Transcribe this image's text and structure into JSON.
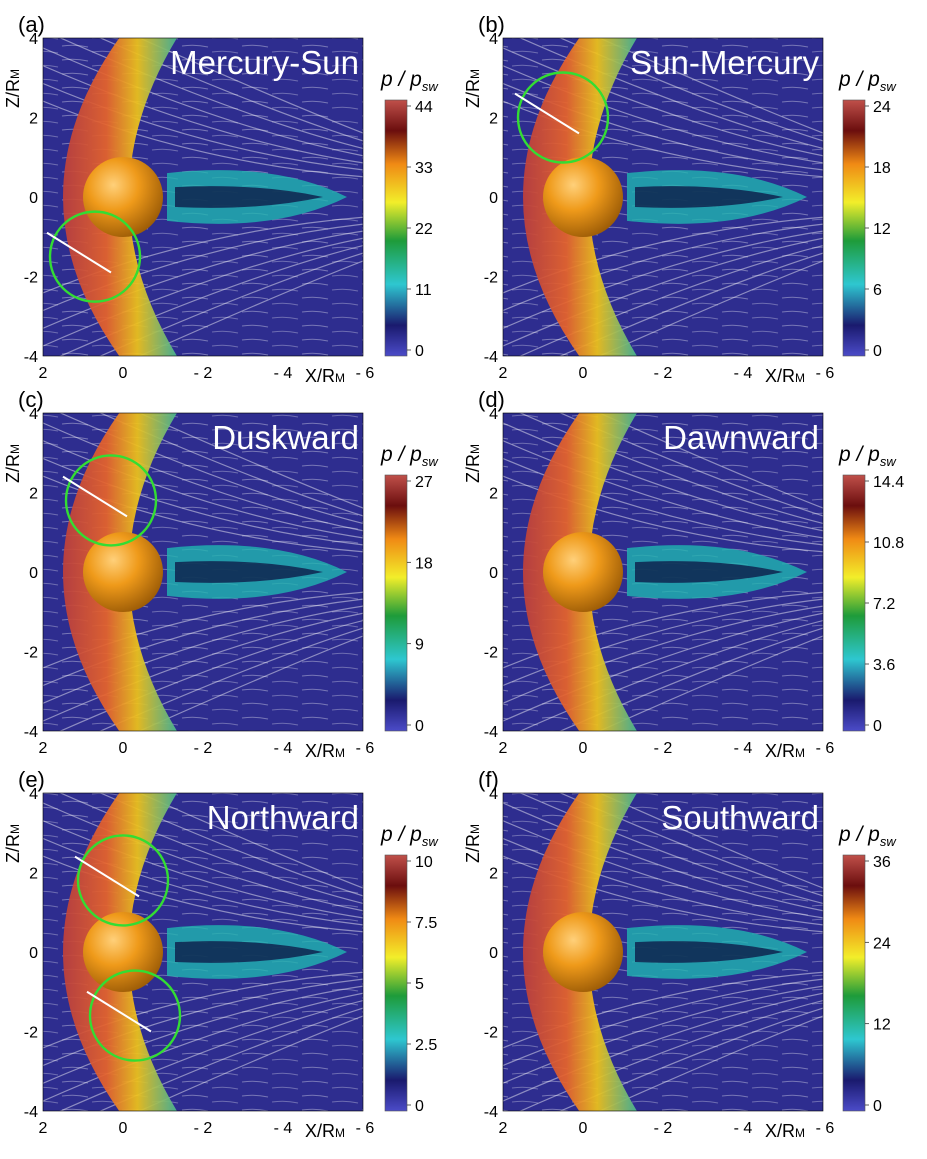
{
  "figure": {
    "cbar_label": "p / p_sw",
    "cbar_label_main": "p / p",
    "cbar_label_sub": "sw",
    "x_axis_label": "X/R",
    "x_axis_sub": "M",
    "y_axis_label": "Z/R",
    "y_axis_sub": "M",
    "x_ticks": [
      "2",
      "0",
      "- 2",
      "- 4",
      "- 6"
    ],
    "y_ticks": [
      "4",
      "2",
      "0",
      "-2",
      "-4"
    ],
    "colors": {
      "background": "#2e2d8f",
      "sheath_low": "#1fb5b0",
      "sheath_mid": "#f0c419",
      "sheath_high": "#b8342a",
      "planet": "#e8900f",
      "circle": "#33dd33",
      "fieldline": "#ffffff"
    },
    "panels": [
      {
        "id": "a",
        "letter": "(a)",
        "title": "Mercury-Sun",
        "cbar_ticks": [
          "44",
          "33",
          "22",
          "11",
          "0"
        ],
        "circles": [
          {
            "x": 0.7,
            "z": -1.5
          }
        ]
      },
      {
        "id": "b",
        "letter": "(b)",
        "title": "Sun-Mercury",
        "cbar_ticks": [
          "24",
          "18",
          "12",
          "6",
          "0"
        ],
        "circles": [
          {
            "x": 0.5,
            "z": 2.0
          }
        ]
      },
      {
        "id": "c",
        "letter": "(c)",
        "title": "Duskward",
        "cbar_ticks": [
          "27",
          "18",
          "9",
          "0"
        ],
        "circles": [
          {
            "x": 0.3,
            "z": 1.8
          }
        ]
      },
      {
        "id": "d",
        "letter": "(d)",
        "title": "Dawnward",
        "cbar_ticks": [
          "14.4",
          "10.8",
          "7.2",
          "3.6",
          "0"
        ],
        "circles": []
      },
      {
        "id": "e",
        "letter": "(e)",
        "title": "Northward",
        "cbar_ticks": [
          "10",
          "7.5",
          "5",
          "2.5",
          "0"
        ],
        "circles": [
          {
            "x": 0.0,
            "z": 1.8
          },
          {
            "x": -0.3,
            "z": -1.6
          }
        ]
      },
      {
        "id": "f",
        "letter": "(f)",
        "title": "Southward",
        "cbar_ticks": [
          "36",
          "24",
          "12",
          "0"
        ],
        "circles": []
      }
    ]
  }
}
